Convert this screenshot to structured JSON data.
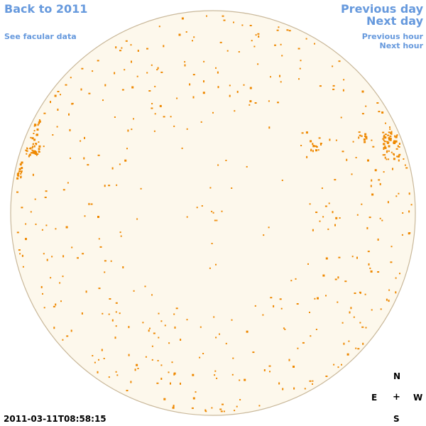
{
  "navigation": {
    "back_label": "Back to 2011",
    "facular_label": "See facular data",
    "previous_day_label": "Previous day",
    "next_day_label": "Next day",
    "previous_hour_label": "Previous hour",
    "next_hour_label": "Next hour"
  },
  "compass": {
    "north": "N",
    "east": "E",
    "center": "+",
    "west": "W",
    "south": "S"
  },
  "timestamp": "2011-03-11T08:58:15",
  "colors": {
    "link": "#6699dd",
    "disk_fill": "#fdf8ec",
    "disk_outline": "#c9b89a",
    "facula": "#ee8800"
  }
}
